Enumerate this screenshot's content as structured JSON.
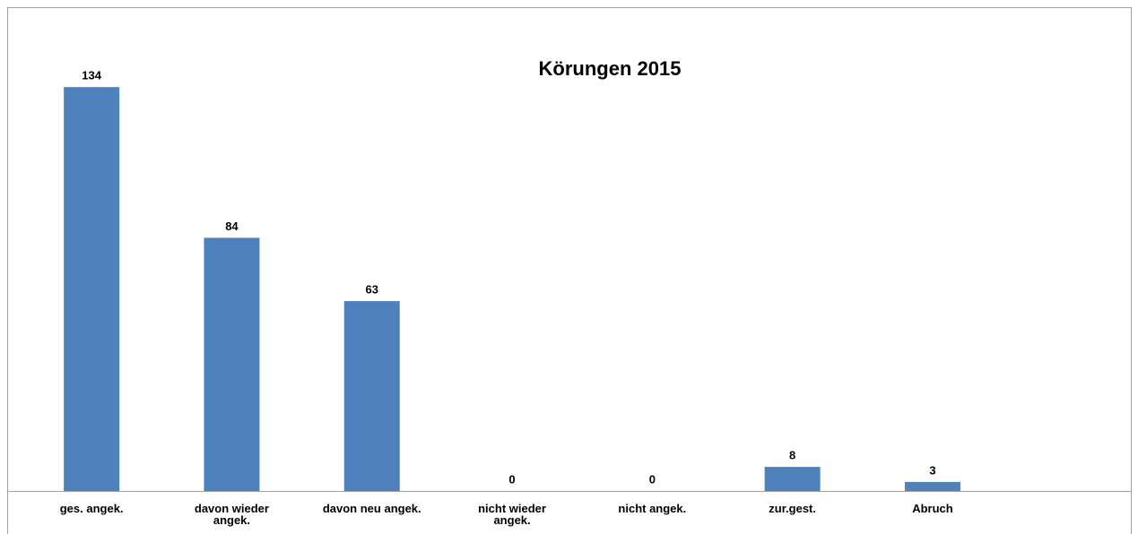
{
  "chart_data": {
    "type": "bar",
    "title": "Körungen 2015",
    "categories": [
      "ges. angek.",
      "davon wieder angek.",
      "davon neu angek.",
      "nicht wieder angek.",
      "nicht angek.",
      "zur.gest.",
      "Abruch"
    ],
    "values": [
      134,
      84,
      63,
      0,
      0,
      8,
      3
    ],
    "color": "#4f81bd",
    "ylim": [
      0,
      140
    ]
  }
}
